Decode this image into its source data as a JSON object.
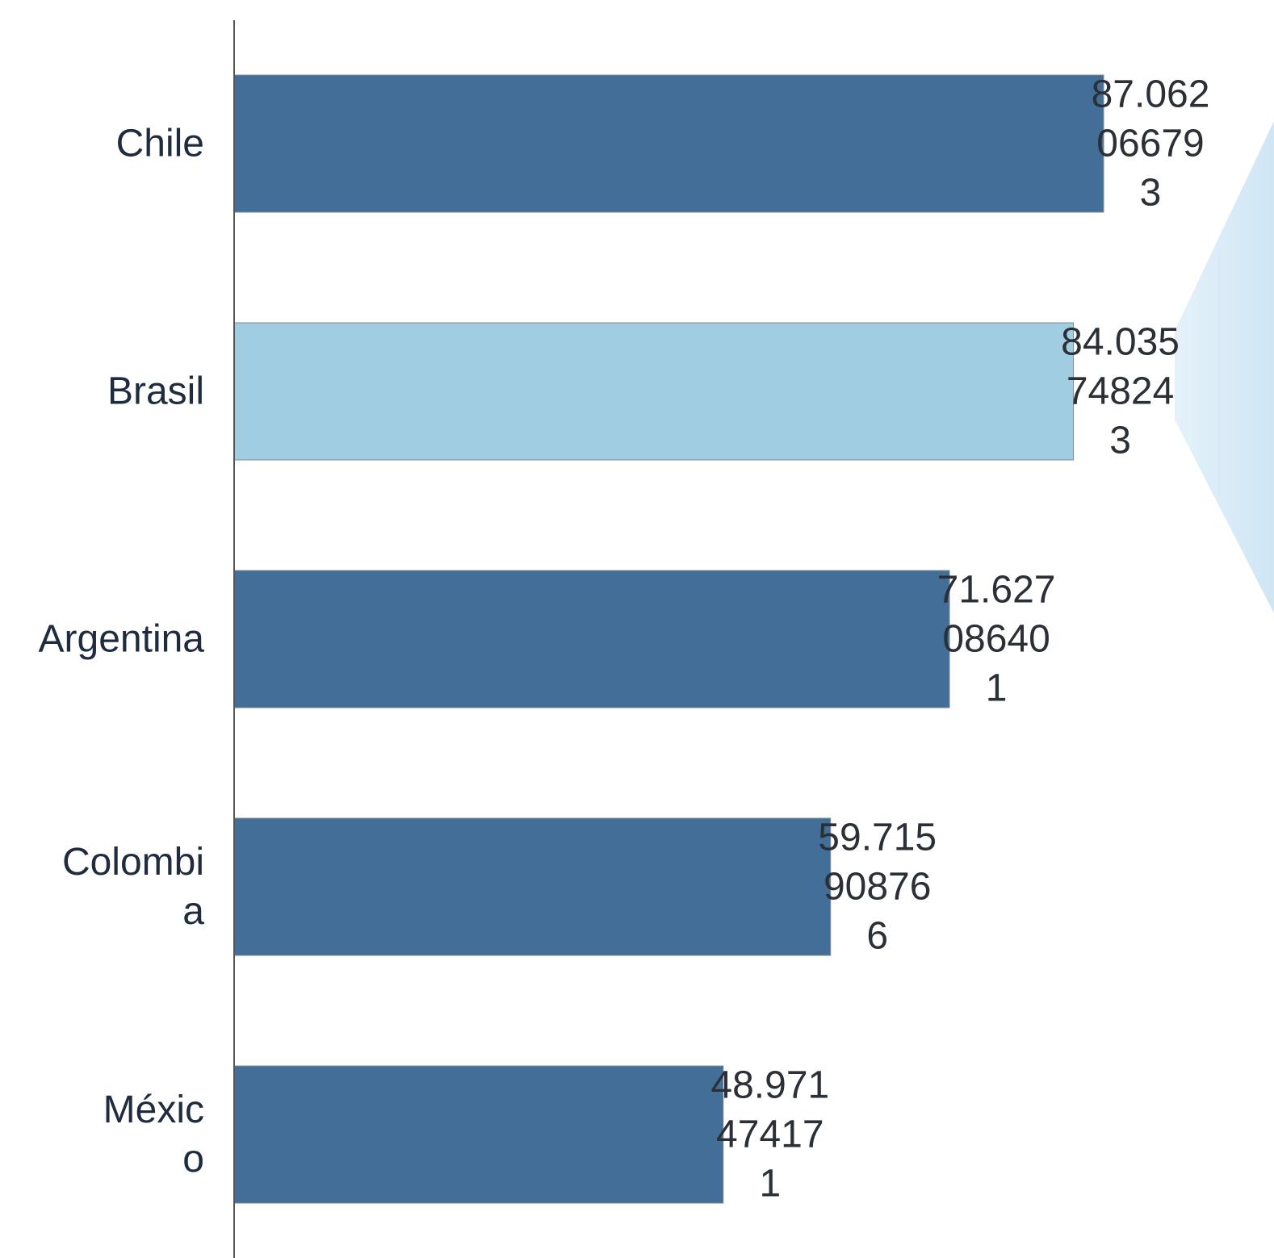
{
  "chart_data": {
    "type": "bar",
    "orientation": "horizontal",
    "categories": [
      "Chile",
      "Brasil",
      "Argentina",
      "Colombia",
      "México"
    ],
    "category_labels": [
      [
        "Chile"
      ],
      [
        "Brasil"
      ],
      [
        "Argentina"
      ],
      [
        "Colombi",
        "a"
      ],
      [
        "Méxic",
        "o"
      ]
    ],
    "values": [
      87.0620667793,
      84.0357482443,
      71.6270864011,
      59.7159087666,
      48.9714741711
    ],
    "value_labels": [
      [
        "87.062",
        "06679",
        "3"
      ],
      [
        "84.035",
        "74824",
        "3"
      ],
      [
        "71.627",
        "08640",
        "1"
      ],
      [
        "59.715",
        "90876",
        "6"
      ],
      [
        "48.971",
        "47417",
        "1"
      ]
    ],
    "highlight_index": 1,
    "title": "",
    "xlabel": "",
    "ylabel": "",
    "xlim": [
      0,
      100
    ],
    "grid": false,
    "legend": "none",
    "colors": {
      "bar": "#426e98",
      "highlight": "#a1cde3",
      "bar_stroke": "#7f8a96",
      "axis": "#555555",
      "decoration": "#cfe6f5"
    }
  }
}
